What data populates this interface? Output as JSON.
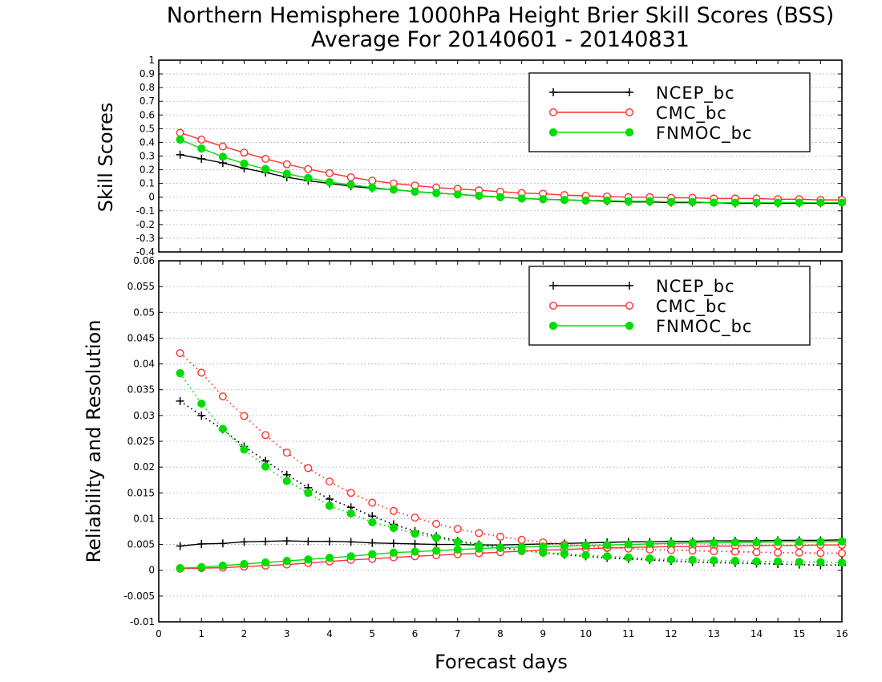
{
  "title_line1": "Northern Hemisphere 1000hPa Height Brier Skill Scores (BSS)",
  "title_line2": "Average For 20140601 - 20140831",
  "xlabel": "Forecast days",
  "colors": {
    "NCEP_bc": "#000000",
    "CMC_bc": "#ff3030",
    "FNMOC_bc": "#00dd00"
  },
  "chart_data": [
    {
      "type": "line",
      "ylabel": "Skill Scores",
      "xlim": [
        0,
        16
      ],
      "ylim": [
        -0.4,
        1
      ],
      "grid": true,
      "legend_position": "top-right",
      "x": [
        0.5,
        1,
        1.5,
        2,
        2.5,
        3,
        3.5,
        4,
        4.5,
        5,
        5.5,
        6,
        6.5,
        7,
        7.5,
        8,
        8.5,
        9,
        9.5,
        10,
        10.5,
        11,
        11.5,
        12,
        12.5,
        13,
        13.5,
        14,
        14.5,
        15,
        15.5,
        16
      ],
      "xticks": [
        0,
        1,
        2,
        3,
        4,
        5,
        6,
        7,
        8,
        9,
        10,
        11,
        12,
        13,
        14,
        15,
        16
      ],
      "yticks": [
        "-0.4",
        "-0.3",
        "-0.2",
        "-0.1",
        "0",
        "0.1",
        "0.2",
        "0.3",
        "0.4",
        "0.5",
        "0.6",
        "0.7",
        "0.8",
        "0.9",
        "1"
      ],
      "series": [
        {
          "name": "NCEP_bc",
          "marker": "plus",
          "line": "solid",
          "values": [
            0.31,
            0.28,
            0.25,
            0.21,
            0.18,
            0.145,
            0.12,
            0.1,
            0.08,
            0.065,
            0.055,
            0.04,
            0.03,
            0.02,
            0.01,
            0.0,
            -0.01,
            -0.015,
            -0.02,
            -0.025,
            -0.03,
            -0.035,
            -0.035,
            -0.04,
            -0.04,
            -0.04,
            -0.045,
            -0.045,
            -0.045,
            -0.045,
            -0.045,
            -0.045
          ]
        },
        {
          "name": "CMC_bc",
          "marker": "open-circle",
          "line": "solid",
          "values": [
            0.47,
            0.42,
            0.37,
            0.325,
            0.28,
            0.24,
            0.205,
            0.175,
            0.145,
            0.12,
            0.1,
            0.085,
            0.07,
            0.06,
            0.05,
            0.04,
            0.03,
            0.025,
            0.015,
            0.01,
            0.005,
            0.0,
            0.0,
            -0.005,
            -0.005,
            -0.01,
            -0.01,
            -0.01,
            -0.015,
            -0.015,
            -0.02,
            -0.02
          ]
        },
        {
          "name": "FNMOC_bc",
          "marker": "filled-circle",
          "line": "solid",
          "values": [
            0.42,
            0.355,
            0.295,
            0.245,
            0.205,
            0.17,
            0.14,
            0.11,
            0.09,
            0.07,
            0.055,
            0.04,
            0.03,
            0.02,
            0.01,
            0.0,
            -0.01,
            -0.015,
            -0.02,
            -0.025,
            -0.025,
            -0.03,
            -0.03,
            -0.035,
            -0.035,
            -0.04,
            -0.04,
            -0.04,
            -0.04,
            -0.04,
            -0.04,
            -0.04
          ]
        }
      ]
    },
    {
      "type": "line",
      "ylabel": "Reliability and Resolution",
      "xlabel": "Forecast days",
      "xlim": [
        0,
        16
      ],
      "ylim": [
        -0.01,
        0.06
      ],
      "grid": true,
      "legend_position": "top-right",
      "x": [
        0.5,
        1,
        1.5,
        2,
        2.5,
        3,
        3.5,
        4,
        4.5,
        5,
        5.5,
        6,
        6.5,
        7,
        7.5,
        8,
        8.5,
        9,
        9.5,
        10,
        10.5,
        11,
        11.5,
        12,
        12.5,
        13,
        13.5,
        14,
        14.5,
        15,
        15.5,
        16
      ],
      "xticks": [
        0,
        1,
        2,
        3,
        4,
        5,
        6,
        7,
        8,
        9,
        10,
        11,
        12,
        13,
        14,
        15,
        16
      ],
      "yticks": [
        "-0.01",
        "-0.005",
        "0",
        "0.005",
        "0.01",
        "0.015",
        "0.02",
        "0.025",
        "0.03",
        "0.035",
        "0.04",
        "0.045",
        "0.05",
        "0.055",
        "0.06"
      ],
      "series": [
        {
          "name": "NCEP_bc",
          "metric": "reliability",
          "marker": "plus",
          "line": "solid",
          "values": [
            0.0047,
            0.0051,
            0.0052,
            0.0055,
            0.0056,
            0.0057,
            0.0056,
            0.0056,
            0.0055,
            0.0053,
            0.0052,
            0.0051,
            0.005,
            0.005,
            0.0049,
            0.0049,
            0.005,
            0.0051,
            0.0052,
            0.0053,
            0.0054,
            0.0055,
            0.0055,
            0.0056,
            0.0056,
            0.0057,
            0.0057,
            0.0057,
            0.0058,
            0.0058,
            0.0058,
            0.0059
          ]
        },
        {
          "name": "NCEP_bc",
          "metric": "resolution",
          "marker": "plus",
          "line": "dotted",
          "values": [
            0.0328,
            0.03,
            0.0273,
            0.024,
            0.0212,
            0.0185,
            0.016,
            0.0138,
            0.0122,
            0.0105,
            0.0089,
            0.0076,
            0.0066,
            0.0057,
            0.005,
            0.0044,
            0.0039,
            0.0034,
            0.003,
            0.0027,
            0.0024,
            0.0022,
            0.002,
            0.0018,
            0.0016,
            0.0015,
            0.0014,
            0.0013,
            0.0012,
            0.0011,
            0.001,
            0.001
          ]
        },
        {
          "name": "CMC_bc",
          "metric": "reliability",
          "marker": "open-circle",
          "line": "solid",
          "values": [
            0.0003,
            0.0004,
            0.0005,
            0.0007,
            0.0009,
            0.0011,
            0.0014,
            0.0017,
            0.002,
            0.0022,
            0.0025,
            0.0027,
            0.0029,
            0.0031,
            0.0033,
            0.0035,
            0.0037,
            0.0039,
            0.004,
            0.0042,
            0.0043,
            0.0044,
            0.0045,
            0.0046,
            0.0046,
            0.0047,
            0.0047,
            0.0048,
            0.0048,
            0.0048,
            0.0049,
            0.0049
          ]
        },
        {
          "name": "CMC_bc",
          "metric": "resolution",
          "marker": "open-circle",
          "line": "dotted",
          "values": [
            0.0421,
            0.0383,
            0.0337,
            0.0299,
            0.0262,
            0.0228,
            0.0198,
            0.0172,
            0.015,
            0.0131,
            0.0115,
            0.0102,
            0.009,
            0.008,
            0.0072,
            0.0065,
            0.0059,
            0.0054,
            0.005,
            0.0047,
            0.0044,
            0.0042,
            0.004,
            0.0039,
            0.0038,
            0.0037,
            0.0036,
            0.0035,
            0.0034,
            0.0034,
            0.0033,
            0.0033
          ]
        },
        {
          "name": "FNMOC_bc",
          "metric": "reliability",
          "marker": "filled-circle",
          "line": "solid",
          "values": [
            0.0004,
            0.0006,
            0.0009,
            0.0012,
            0.0015,
            0.0018,
            0.0021,
            0.0024,
            0.0027,
            0.0031,
            0.0034,
            0.0036,
            0.0038,
            0.004,
            0.0042,
            0.0044,
            0.0045,
            0.0046,
            0.0047,
            0.0048,
            0.0049,
            0.005,
            0.0051,
            0.0052,
            0.0053,
            0.0053,
            0.0054,
            0.0054,
            0.0055,
            0.0055,
            0.0055,
            0.0056
          ]
        },
        {
          "name": "FNMOC_bc",
          "metric": "resolution",
          "marker": "filled-circle",
          "line": "dotted",
          "values": [
            0.0382,
            0.0323,
            0.0274,
            0.0234,
            0.0201,
            0.0173,
            0.015,
            0.0125,
            0.011,
            0.0093,
            0.0082,
            0.0071,
            0.0063,
            0.0055,
            0.0048,
            0.0043,
            0.0038,
            0.0034,
            0.0032,
            0.0029,
            0.0027,
            0.0025,
            0.0023,
            0.0021,
            0.002,
            0.0019,
            0.0018,
            0.0017,
            0.0017,
            0.0016,
            0.0016,
            0.0015
          ]
        }
      ]
    }
  ]
}
